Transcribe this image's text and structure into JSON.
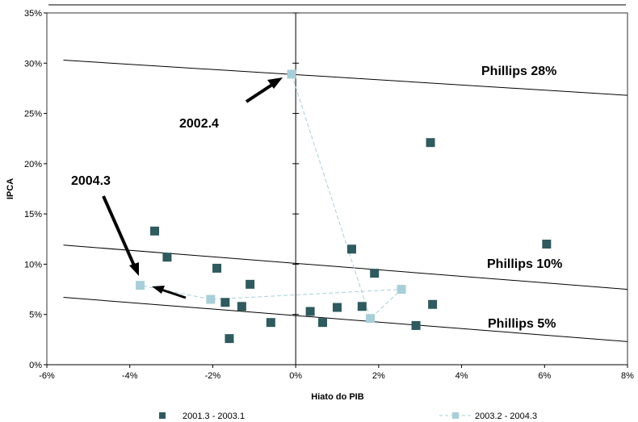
{
  "chart_data": {
    "type": "scatter",
    "xlabel": "Hiato do PIB",
    "ylabel": "IPCA",
    "xlim": [
      -6,
      8
    ],
    "ylim": [
      0,
      35
    ],
    "x_ticks": [
      -6,
      -4,
      -2,
      0,
      2,
      4,
      6,
      8
    ],
    "y_ticks": [
      0,
      5,
      10,
      15,
      20,
      25,
      30,
      35
    ],
    "x_tick_labels": [
      "-6%",
      "-4%",
      "-2%",
      "0%",
      "2%",
      "4%",
      "6%",
      "8%"
    ],
    "y_tick_labels": [
      "0%",
      "5%",
      "10%",
      "15%",
      "20%",
      "25%",
      "30%",
      "35%"
    ],
    "grid": false,
    "legend_position": "bottom",
    "series": [
      {
        "name": "2001.3 - 2003.1",
        "color": "#2f5a5e",
        "connected": false,
        "points": [
          {
            "x": -3.4,
            "y": 13.3
          },
          {
            "x": -3.1,
            "y": 10.7
          },
          {
            "x": -1.9,
            "y": 9.6
          },
          {
            "x": -1.7,
            "y": 6.2
          },
          {
            "x": -1.6,
            "y": 2.6
          },
          {
            "x": -1.3,
            "y": 5.8
          },
          {
            "x": -1.1,
            "y": 8.0
          },
          {
            "x": -0.6,
            "y": 4.2
          },
          {
            "x": 0.35,
            "y": 5.3
          },
          {
            "x": 0.65,
            "y": 4.2
          },
          {
            "x": 1.0,
            "y": 5.7
          },
          {
            "x": 1.35,
            "y": 11.5
          },
          {
            "x": 1.6,
            "y": 5.8
          },
          {
            "x": 1.9,
            "y": 9.1
          },
          {
            "x": 2.9,
            "y": 3.9
          },
          {
            "x": 3.25,
            "y": 22.1
          },
          {
            "x": 3.3,
            "y": 6.0
          },
          {
            "x": 6.05,
            "y": 12.0
          }
        ]
      },
      {
        "name": "2003.2 - 2004.3",
        "color": "#a8cfd8",
        "connected": true,
        "points": [
          {
            "x": -0.1,
            "y": 28.9
          },
          {
            "x": 1.8,
            "y": 4.6
          },
          {
            "x": 2.55,
            "y": 7.5
          },
          {
            "x": -2.05,
            "y": 6.5
          },
          {
            "x": -3.75,
            "y": 7.9
          }
        ]
      }
    ],
    "phillips_curves": [
      {
        "label": "Phillips 28%",
        "x1": -5.6,
        "y1": 30.3,
        "x2": 8.0,
        "y2": 26.8
      },
      {
        "label": "Phillips 10%",
        "x1": -5.6,
        "y1": 11.9,
        "x2": 8.0,
        "y2": 7.5
      },
      {
        "label": "Phillips 5%",
        "x1": -5.6,
        "y1": 6.7,
        "x2": 8.0,
        "y2": 2.3
      }
    ],
    "annotations": [
      {
        "text": "2002.4"
      },
      {
        "text": "2004.3"
      }
    ]
  }
}
